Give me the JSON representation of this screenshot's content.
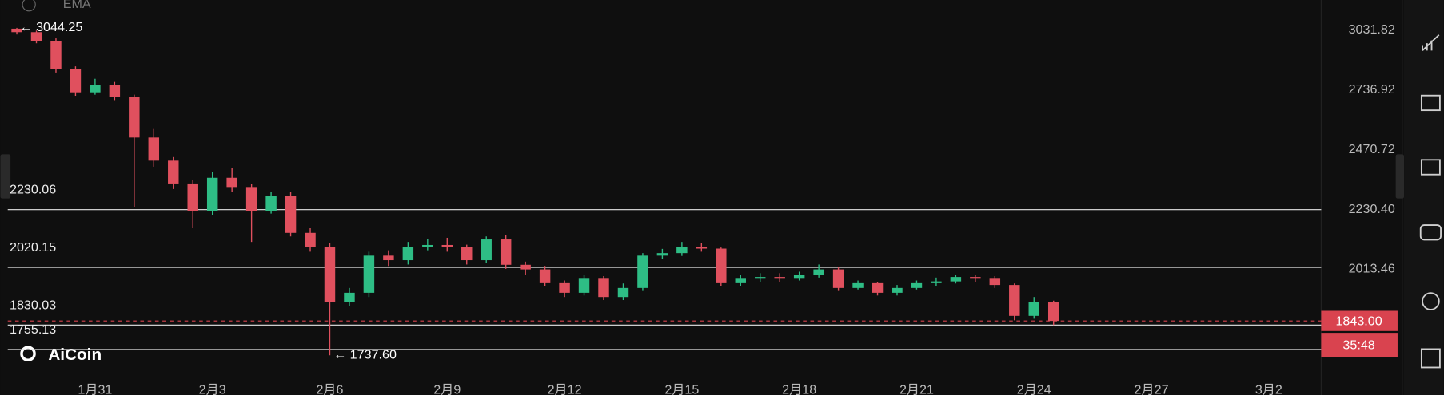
{
  "chart_data": {
    "type": "candlestick",
    "indicator": "EMA",
    "logo": "AiCoin",
    "log_scale": true,
    "up_color": "#2ebd85",
    "down_color": "#e0505e",
    "x": [
      -2,
      -1.5,
      -1,
      -0.5,
      0,
      0.5,
      1,
      1.5,
      2,
      2.5,
      3,
      3.5,
      4,
      4.5,
      5,
      5.5,
      6,
      6.5,
      7,
      7.5,
      8,
      8.5,
      9,
      9.5,
      10,
      10.5,
      11,
      11.5,
      12,
      12.5,
      13,
      13.5,
      14,
      14.5,
      15,
      15.5,
      16,
      16.5,
      17,
      17.5,
      18,
      18.5,
      19,
      19.5,
      20,
      20.5,
      21,
      21.5,
      22,
      22.5,
      23,
      23.5,
      24,
      24.5
    ],
    "open": [
      3040,
      3022,
      2975,
      2836,
      2726,
      2760,
      2705,
      2523,
      2425,
      2332,
      2226,
      2355,
      2318,
      2226,
      2282,
      2143,
      2093,
      1904,
      1934,
      2061,
      2045,
      2093,
      2099,
      2093,
      2045,
      2119,
      2029,
      2013,
      1966,
      1934,
      1981,
      1920,
      1950,
      2061,
      2070,
      2093,
      2086,
      1966,
      1981,
      1987,
      1981,
      1994,
      2013,
      1950,
      1966,
      1934,
      1950,
      1966,
      1972,
      1987,
      1981,
      1960,
      1859,
      1904
    ],
    "high": [
      3044.25,
      3030,
      2990,
      2850,
      2790,
      2775,
      2715,
      2560,
      2440,
      2345,
      2380,
      2395,
      2330,
      2300,
      2300,
      2160,
      2105,
      1950,
      2075,
      2080,
      2110,
      2120,
      2125,
      2100,
      2130,
      2135,
      2040,
      2025,
      1975,
      1995,
      1990,
      1965,
      2070,
      2085,
      2110,
      2105,
      2090,
      1995,
      2000,
      2000,
      2005,
      2030,
      2020,
      1975,
      1970,
      1960,
      1975,
      1985,
      1995,
      1995,
      1990,
      1965,
      1920,
      1908
    ],
    "low": [
      3010,
      2965,
      2820,
      2710,
      2715,
      2690,
      2240,
      2400,
      2310,
      2160,
      2210,
      2300,
      2110,
      2215,
      2130,
      2075,
      1737.6,
      1890,
      1920,
      2025,
      2030,
      2080,
      2075,
      2030,
      2035,
      2015,
      1995,
      1955,
      1920,
      1925,
      1910,
      1910,
      1940,
      2050,
      2060,
      2075,
      1955,
      1955,
      1970,
      1970,
      1975,
      1985,
      1940,
      1945,
      1925,
      1925,
      1945,
      1955,
      1965,
      1970,
      1950,
      1845,
      1850,
      1830
    ],
    "close": [
      3022,
      2975,
      2836,
      2726,
      2760,
      2705,
      2523,
      2425,
      2332,
      2226,
      2355,
      2318,
      2226,
      2282,
      2143,
      2093,
      1904,
      1934,
      2061,
      2045,
      2093,
      2099,
      2093,
      2045,
      2119,
      2029,
      2013,
      1966,
      1934,
      1981,
      1920,
      1950,
      2061,
      2070,
      2093,
      2086,
      1966,
      1981,
      1987,
      1981,
      1994,
      2013,
      1950,
      1966,
      1934,
      1950,
      1966,
      1972,
      1987,
      1981,
      1960,
      1859,
      1904,
      1843
    ],
    "xlim": [
      -2.42,
      31.34
    ],
    "xticks": [
      {
        "value": 0,
        "label": "1月31"
      },
      {
        "value": 3,
        "label": "2月3"
      },
      {
        "value": 6,
        "label": "2月6"
      },
      {
        "value": 9,
        "label": "2月9"
      },
      {
        "value": 12,
        "label": "2月12"
      },
      {
        "value": 15,
        "label": "2月15"
      },
      {
        "value": 18,
        "label": "2月18"
      },
      {
        "value": 21,
        "label": "2月21"
      },
      {
        "value": 24,
        "label": "2月24"
      },
      {
        "value": 27,
        "label": "2月27"
      },
      {
        "value": 30,
        "label": "3月2"
      }
    ],
    "ylim": [
      1670,
      3193
    ],
    "yticks": [
      3031.82,
      2736.92,
      2470.72,
      {
        "value": 2230.4,
        "label": "2230.40"
      },
      2013.46
    ],
    "hlines": [
      2230.06,
      2020.15,
      1830.03,
      1755.13
    ],
    "high_label": {
      "value": 3044.25,
      "label": "← 3044.25"
    },
    "low_label": {
      "value": 1737.6,
      "label": "← 1737.60"
    },
    "last_price": {
      "value": 1843,
      "label": "1843.00"
    },
    "countdown": "35:48"
  }
}
